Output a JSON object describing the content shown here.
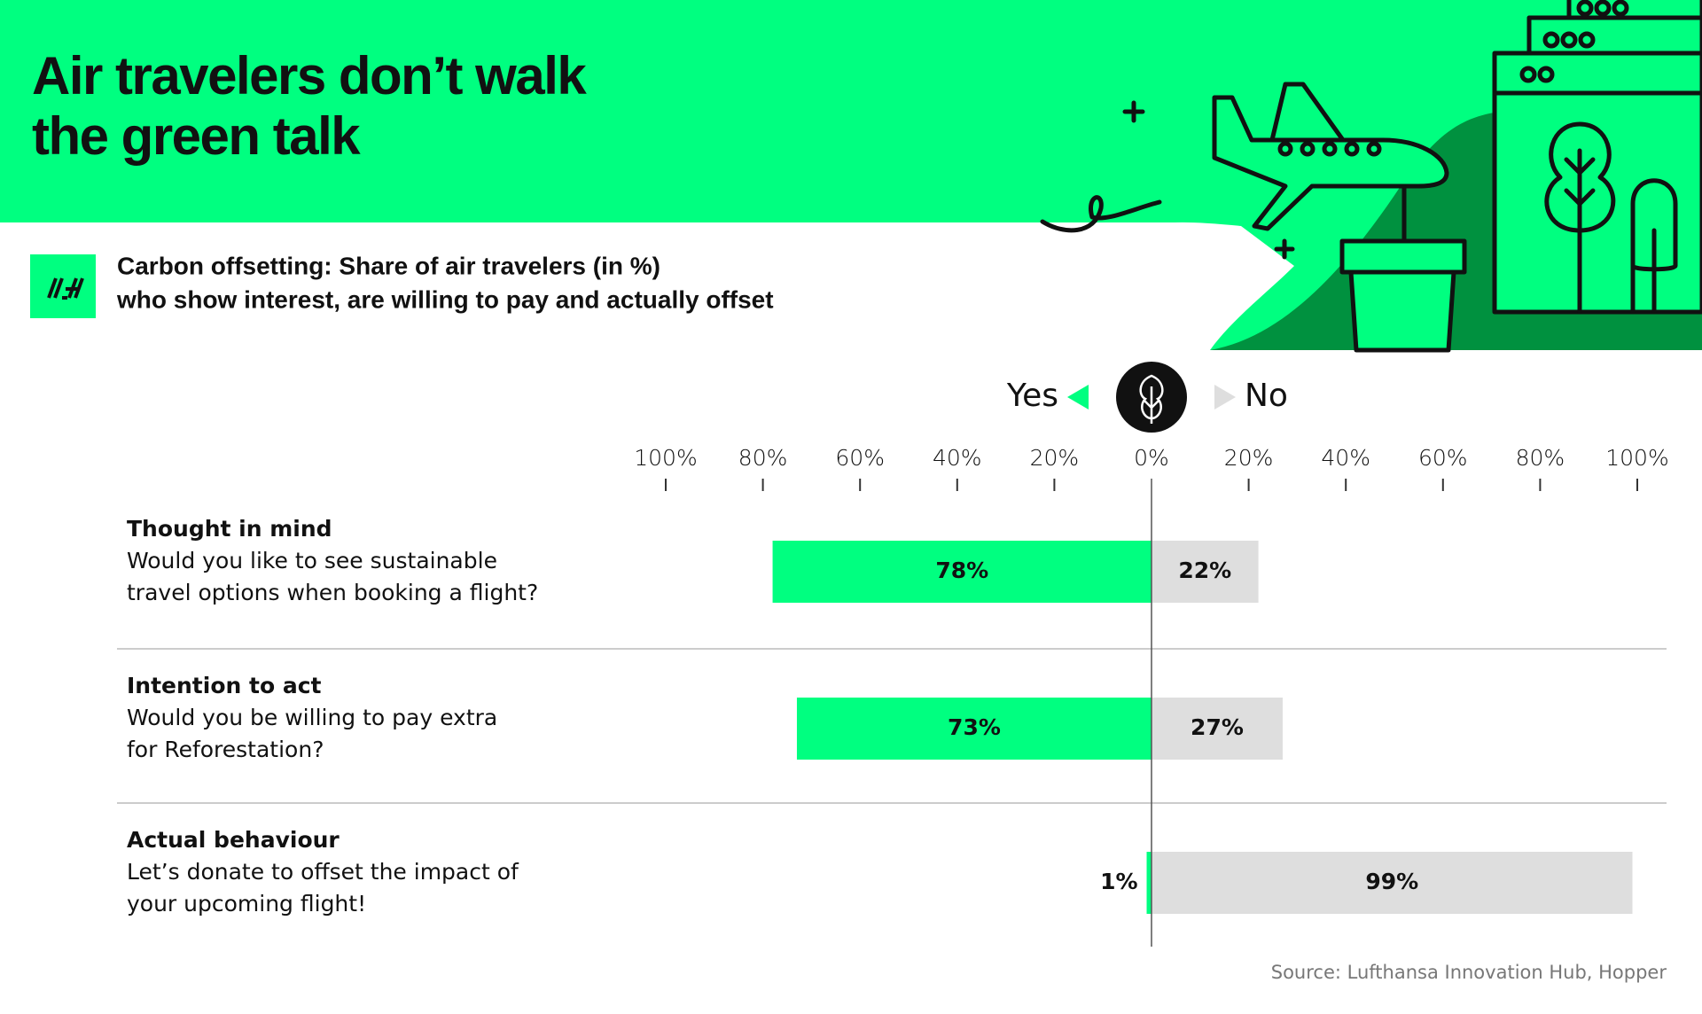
{
  "chart_data": {
    "type": "diverging-bar",
    "title_lines": [
      "Air travelers don’t walk",
      "the green talk"
    ],
    "subtitle_lines": [
      "Carbon offsetting: Share of air travelers (in %)",
      "who show interest, are willing to pay and actually offset"
    ],
    "categories": [
      {
        "title": "Thought in mind",
        "question_lines": [
          "Would you like to see sustainable",
          "travel options when booking a flight?"
        ]
      },
      {
        "title": "Intention to act",
        "question_lines": [
          "Would you be willing to pay extra",
          "for Reforestation?"
        ]
      },
      {
        "title": "Actual behaviour",
        "question_lines": [
          "Let’s donate to offset the impact of",
          "your upcoming flight!"
        ]
      }
    ],
    "series": [
      {
        "name": "Yes",
        "color": "#00ff80",
        "values": [
          78,
          73,
          1
        ],
        "value_labels": [
          "78%",
          "73%",
          "1%"
        ]
      },
      {
        "name": "No",
        "color": "#dedede",
        "values": [
          22,
          27,
          99
        ],
        "value_labels": [
          "22%",
          "27%",
          "99%"
        ]
      }
    ],
    "xlim": [
      0,
      100
    ],
    "xticks": [
      {
        "value": 0,
        "label": "0%"
      },
      {
        "value": 20,
        "label": "20%"
      },
      {
        "value": 40,
        "label": "40%"
      },
      {
        "value": 60,
        "label": "60%"
      },
      {
        "value": 80,
        "label": "80%"
      },
      {
        "value": 100,
        "label": "100%"
      }
    ],
    "source": "Source: Lufthansa Innovation Hub, Hopper"
  }
}
